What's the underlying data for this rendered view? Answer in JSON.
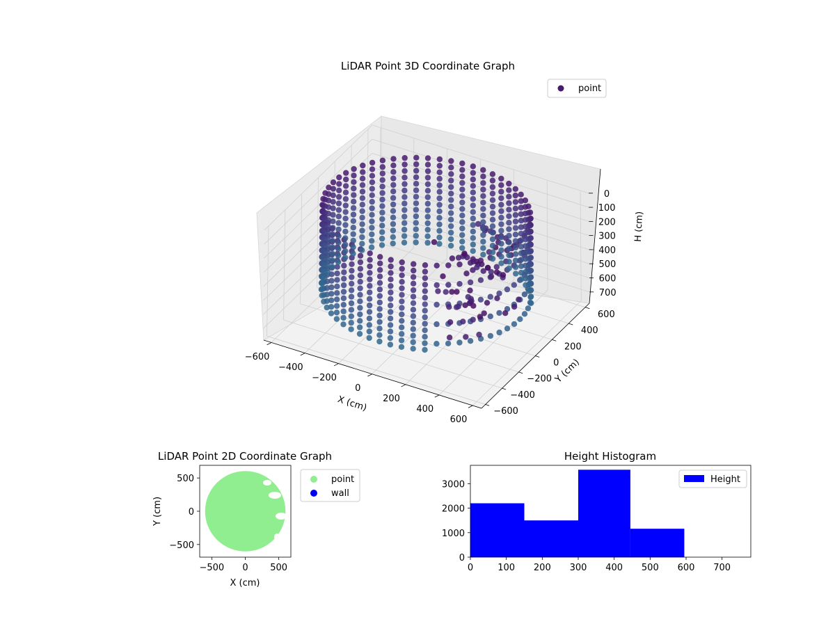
{
  "figure": {
    "background": "#ffffff"
  },
  "chart_data": [
    {
      "type": "scatter",
      "dims": 3,
      "title": "LiDAR Point 3D Coordinate Graph",
      "xlabel": "X (cm)",
      "ylabel": "Y (cm)",
      "zlabel": "H (cm)",
      "x_ticks": [
        "−600",
        "−400",
        "−200",
        "0",
        "200",
        "400",
        "600"
      ],
      "y_ticks": [
        "−600",
        "−400",
        "−200",
        "0",
        "200",
        "400",
        "600"
      ],
      "z_ticks": [
        "0",
        "100",
        "200",
        "300",
        "400",
        "500",
        "600",
        "700"
      ],
      "xlim": [
        -650,
        650
      ],
      "ylim": [
        -650,
        650
      ],
      "zlim": [
        0,
        780
      ],
      "z_inverted": true,
      "legend": {
        "position": "top-right",
        "entries": [
          {
            "name": "point",
            "color": "#481a6c"
          }
        ]
      },
      "colormap": "viridis",
      "grid": true,
      "series": [
        {
          "name": "point",
          "shape": "ring",
          "radius": 560,
          "h_range": [
            0,
            600
          ],
          "ring_count": 14
        }
      ]
    },
    {
      "type": "scatter",
      "dims": 2,
      "title": "LiDAR Point 2D Coordinate Graph",
      "xlabel": "X (cm)",
      "ylabel": "Y (cm)",
      "x_ticks": [
        "−500",
        "0",
        "500"
      ],
      "y_ticks": [
        "500",
        "0",
        "−500"
      ],
      "xlim": [
        -680,
        680
      ],
      "ylim": [
        -690,
        690
      ],
      "legend": {
        "position": "outside-right",
        "entries": [
          {
            "name": "point",
            "color": "#90ee90"
          },
          {
            "name": "wall",
            "color": "#0000ee"
          }
        ]
      },
      "series": [
        {
          "name": "point",
          "color": "#90ee90",
          "shape": "disk",
          "center": [
            0,
            0
          ],
          "radius": 600
        }
      ]
    },
    {
      "type": "bar",
      "title": "Height Histogram",
      "bins": [
        {
          "from": 0,
          "to": 150,
          "count": 2200
        },
        {
          "from": 150,
          "to": 300,
          "count": 1500
        },
        {
          "from": 300,
          "to": 445,
          "count": 3570
        },
        {
          "from": 445,
          "to": 595,
          "count": 1160
        }
      ],
      "xlim": [
        0,
        780
      ],
      "ylim": [
        0,
        3750
      ],
      "x_ticks": [
        "0",
        "100",
        "200",
        "300",
        "400",
        "500",
        "600",
        "700"
      ],
      "y_ticks": [
        "0",
        "1000",
        "2000",
        "3000"
      ],
      "legend": {
        "position": "top-right",
        "entries": [
          {
            "name": "Height",
            "color": "#0000ff"
          }
        ]
      },
      "color": "#0000ff"
    }
  ]
}
